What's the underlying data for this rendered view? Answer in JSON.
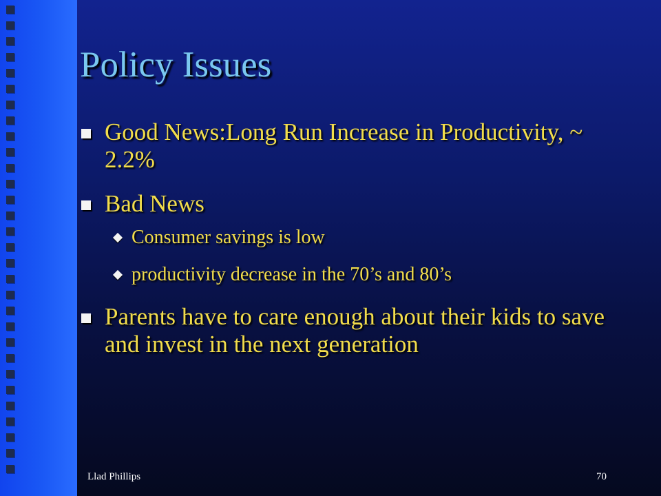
{
  "slide": {
    "title": "Policy Issues",
    "bullets": [
      {
        "text": "Good News:Long Run Increase in Productivity, ~ 2.2%"
      },
      {
        "text": "Bad News"
      },
      {
        "text": "Parents have to care enough about their kids to save and invest in the next generation"
      }
    ],
    "sub_bullets": [
      {
        "text": "Consumer savings is low"
      },
      {
        "text": "productivity decrease in the 70’s and 80’s"
      }
    ],
    "footer": {
      "author": "Llad Phillips",
      "page_number": "70"
    }
  },
  "colors": {
    "background_top": "#12238f",
    "background_bottom": "#05091f",
    "side_bar": "#1a58f5",
    "title": "#7ac8f0",
    "body_text": "#f2dd4c",
    "bullet_marker": "#f4f4f4"
  }
}
